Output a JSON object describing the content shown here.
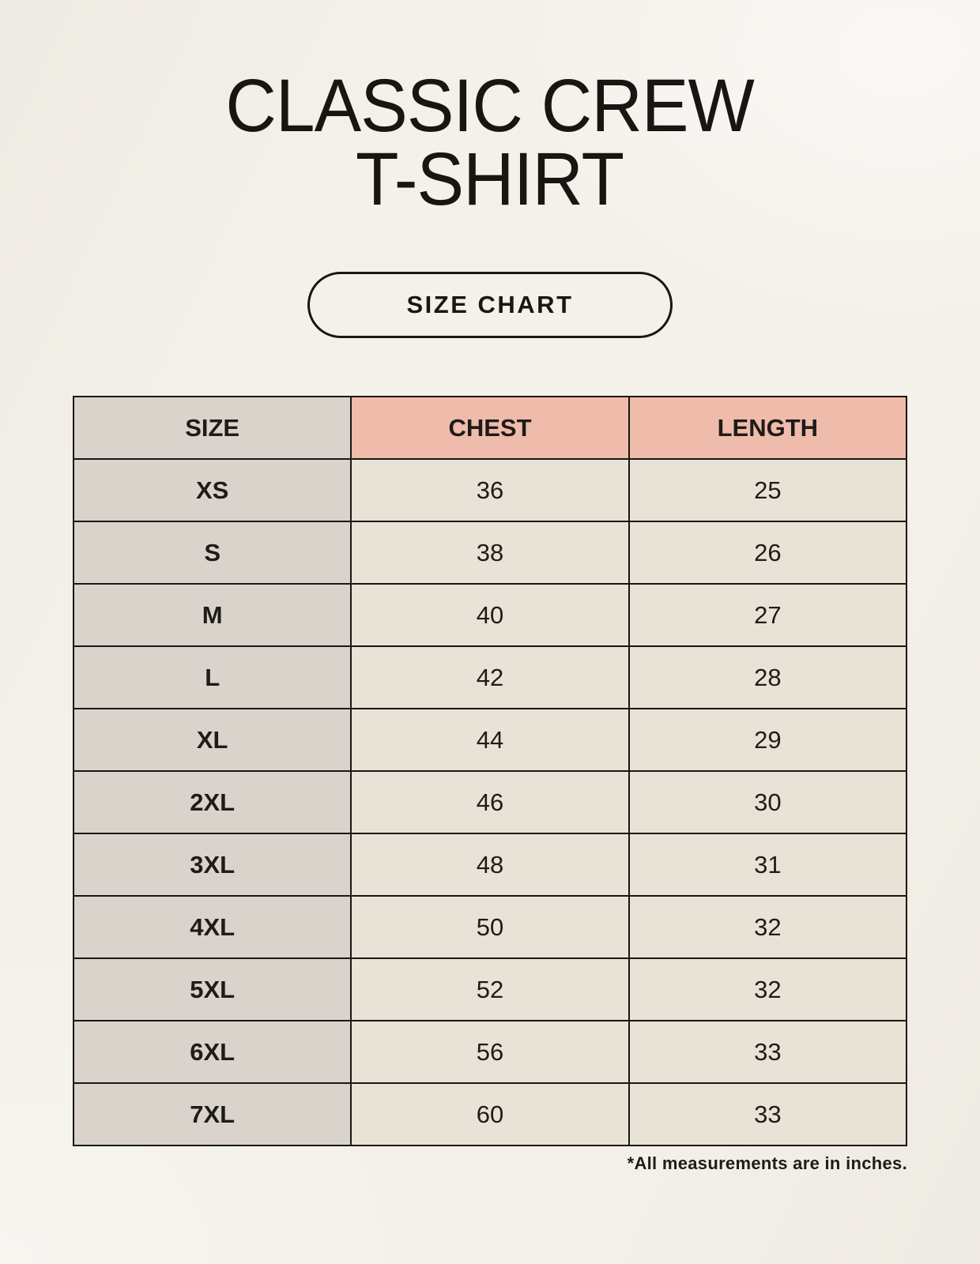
{
  "header": {
    "title_line1": "CLASSIC CREW",
    "title_line2": "T-SHIRT",
    "badge_label": "SIZE CHART"
  },
  "footnote": "*All measurements are in inches.",
  "colors": {
    "page_background": "#f4f1ea",
    "size_column_background": "#d9d3cc",
    "measure_header_background": "#efbcab",
    "measure_cell_background": "#e9e2d7",
    "border": "#191613",
    "text": "#1e1b18"
  },
  "chart_data": {
    "type": "table",
    "title": "Classic Crew T-Shirt Size Chart",
    "units": "inches",
    "columns": [
      "SIZE",
      "CHEST",
      "LENGTH"
    ],
    "rows": [
      [
        "XS",
        "36",
        "25"
      ],
      [
        "S",
        "38",
        "26"
      ],
      [
        "M",
        "40",
        "27"
      ],
      [
        "L",
        "42",
        "28"
      ],
      [
        "XL",
        "44",
        "29"
      ],
      [
        "2XL",
        "46",
        "30"
      ],
      [
        "3XL",
        "48",
        "31"
      ],
      [
        "4XL",
        "50",
        "32"
      ],
      [
        "5XL",
        "52",
        "32"
      ],
      [
        "6XL",
        "56",
        "33"
      ],
      [
        "7XL",
        "60",
        "33"
      ]
    ]
  }
}
